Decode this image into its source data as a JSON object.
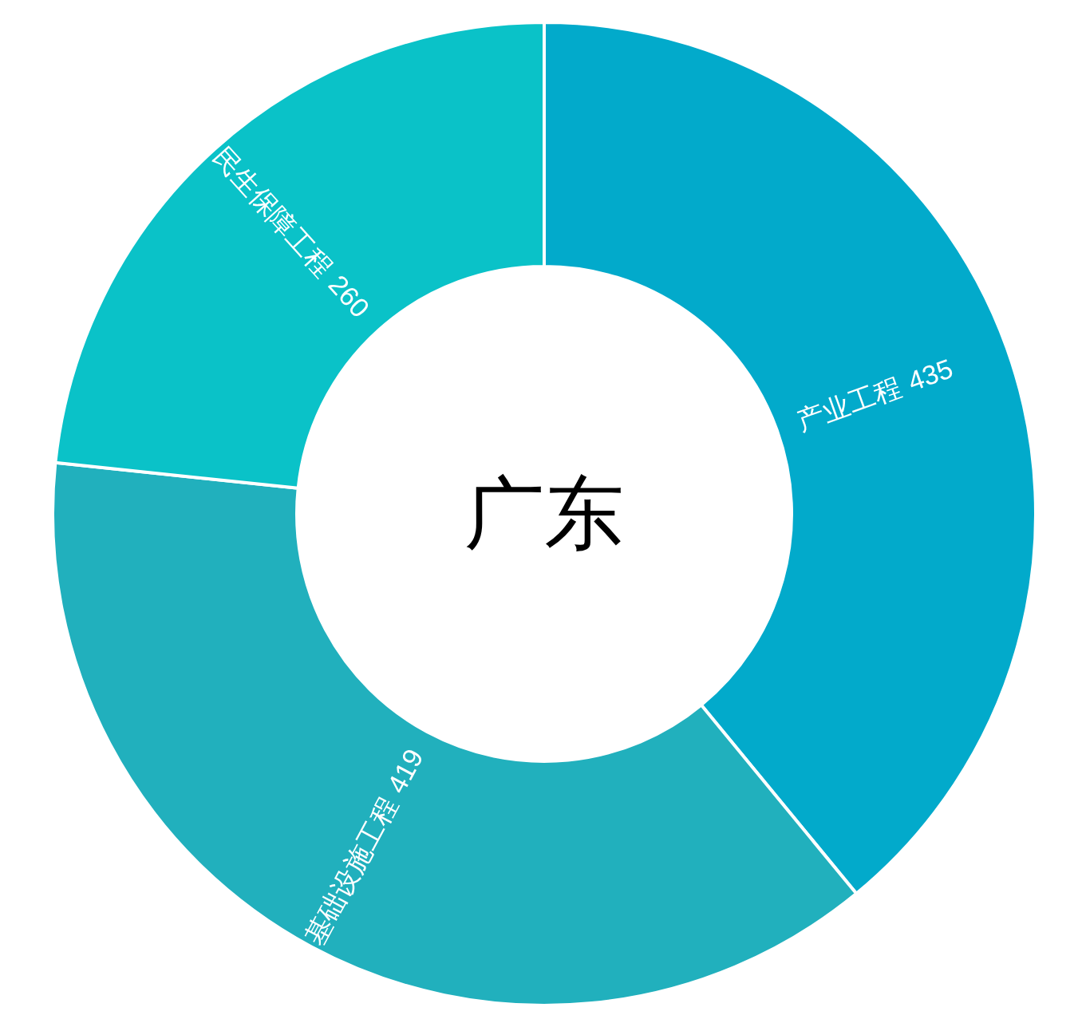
{
  "chart_data": {
    "type": "donut",
    "title": "广东",
    "categories": [
      "产业工程",
      "基础设施工程",
      "民生保障工程"
    ],
    "values": [
      435,
      419,
      260
    ],
    "colors": [
      "#02aacb",
      "#21b0bd",
      "#0ac2c8"
    ],
    "data_labels": true
  }
}
